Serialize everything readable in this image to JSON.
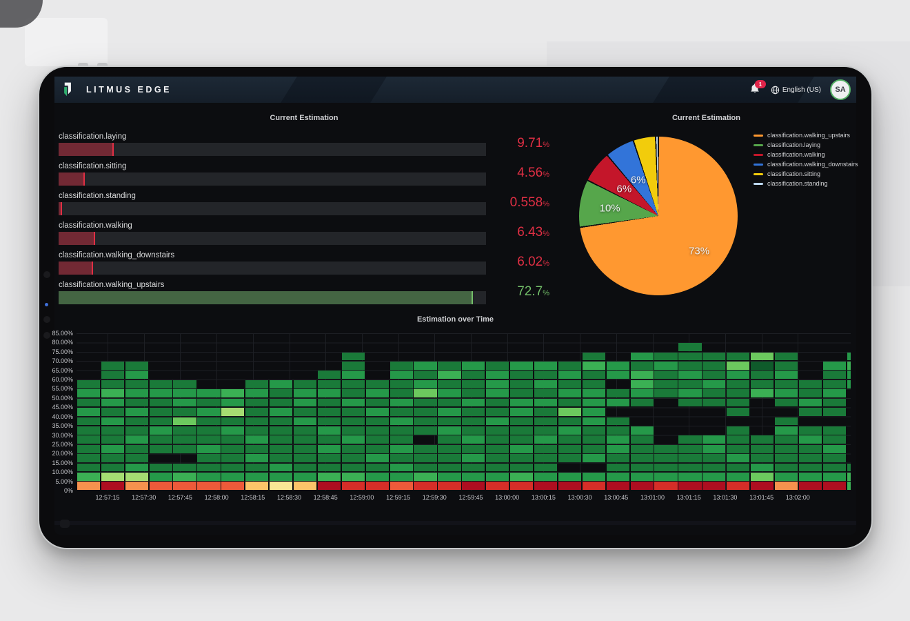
{
  "header": {
    "app_title": "LITMUS EDGE",
    "notification_count": "1",
    "language": "English (US)",
    "avatar_initials": "SA"
  },
  "panels": {
    "bar_gauge": {
      "title": "Current Estimation",
      "type": "bar",
      "min": 0,
      "max": 75,
      "unit": "%",
      "items": [
        {
          "label": "classification.laying",
          "value": 9.71,
          "display": "9.71",
          "color": "#E02F44"
        },
        {
          "label": "classification.sitting",
          "value": 4.56,
          "display": "4.56",
          "color": "#E02F44"
        },
        {
          "label": "classification.standing",
          "value": 0.558,
          "display": "0.558",
          "color": "#E02F44"
        },
        {
          "label": "classification.walking",
          "value": 6.43,
          "display": "6.43",
          "color": "#E02F44"
        },
        {
          "label": "classification.walking_downstairs",
          "value": 6.02,
          "display": "6.02",
          "color": "#E02F44"
        },
        {
          "label": "classification.walking_upstairs",
          "value": 72.7,
          "display": "72.7",
          "color": "#73BF69"
        }
      ]
    },
    "pie": {
      "title": "Current Estimation",
      "type": "pie",
      "slices": [
        {
          "label": "classification.walking_upstairs",
          "pct": 72.7,
          "display": "73%",
          "color": "#FF9830"
        },
        {
          "label": "classification.laying",
          "pct": 9.71,
          "display": "10%",
          "color": "#56A64B"
        },
        {
          "label": "classification.walking",
          "pct": 6.43,
          "display": "6%",
          "color": "#C4162A"
        },
        {
          "label": "classification.walking_downstairs",
          "pct": 6.02,
          "display": "6%",
          "color": "#3274D9"
        },
        {
          "label": "classification.sitting",
          "pct": 4.56,
          "display": "",
          "color": "#F2CC0C"
        },
        {
          "label": "classification.standing",
          "pct": 0.558,
          "display": "",
          "color": "#BDD8F1"
        }
      ]
    },
    "heatmap": {
      "title": "Estimation over Time",
      "type": "heatmap",
      "y_labels_bottom_up": [
        "0%",
        "5.00%",
        "10.00%",
        "15.00%",
        "20.00%",
        "25.00%",
        "30.00%",
        "35.00%",
        "40.00%",
        "45.00%",
        "50.00%",
        "55.00%",
        "60.00%",
        "65.00%",
        "70.00%",
        "75.00%",
        "80.00%",
        "85.00%"
      ],
      "x_labels": [
        "12:57:15",
        "12:57:30",
        "12:57:45",
        "12:58:00",
        "12:58:15",
        "12:58:30",
        "12:58:45",
        "12:59:00",
        "12:59:15",
        "12:59:30",
        "12:59:45",
        "13:00:00",
        "13:00:15",
        "13:00:30",
        "13:00:45",
        "13:01:00",
        "13:01:15",
        "13:01:30",
        "13:01:45",
        "13:02:00"
      ],
      "palette": {
        "1": "#0f5b2b",
        "2": "#1a7a39",
        "3": "#259949",
        "4": "#3bb054",
        "5": "#6cc95e",
        "6": "#a5dc72",
        "7": "#f9e795",
        "8": "#fbc469",
        "9": "#f6924e",
        "A": "#ee5a3a",
        "B": "#d62e28",
        "C": "#ae0e20"
      },
      "matrix_rows_top_down": [
        [
          "..........",
          "..........",
          "..........",
          "..."
        ],
        [
          "..........",
          "..........",
          ".....2....",
          "..."
        ],
        [
          "..........",
          ".2........",
          ".2.3222252",
          "..3"
        ],
        [
          ".22.......",
          ".2.2323233",
          "2432322512",
          ".34"
        ],
        [
          ".23.......",
          "23.3242322",
          "3234232323",
          ".23"
        ],
        [
          "22222..232",
          "2222322323",
          "22.4223222",
          "223"
        ],
        [
          "3433334323",
          "3232532322",
          "3323232243",
          "23."
        ],
        [
          "2322323223",
          "2323223233",
          "2332.222.2",
          "32."
        ],
        [
          "3232236232",
          "2232232232",
          "53.....2..",
          "22."
        ],
        [
          "2322522223",
          "2223222322",
          "232......2",
          "..."
        ],
        [
          "2223223222",
          "3222232222",
          "3223...2.3",
          "22."
        ],
        [
          "2232222322",
          "2322.23223",
          "2232.23222",
          "32."
        ],
        [
          "2322232222",
          "3223222232",
          "2232223222",
          "23."
        ],
        [
          "222..22322",
          "2232223222",
          "2322222322",
          "22."
        ],
        [
          "2232222232",
          "2223222222",
          "..22222232",
          "222"
        ],
        [
          "4663433333",
          "4433433343",
          "3333333353",
          "334"
        ],
        [
          "9C9AAAA878",
          "CBBABBCBBC",
          "CBCCBCCBC9",
          "CC4"
        ]
      ]
    }
  },
  "colors": {
    "dashboard_bg": "#0c0d10",
    "track": "#232529",
    "slice_gap": "#0e0f12"
  }
}
